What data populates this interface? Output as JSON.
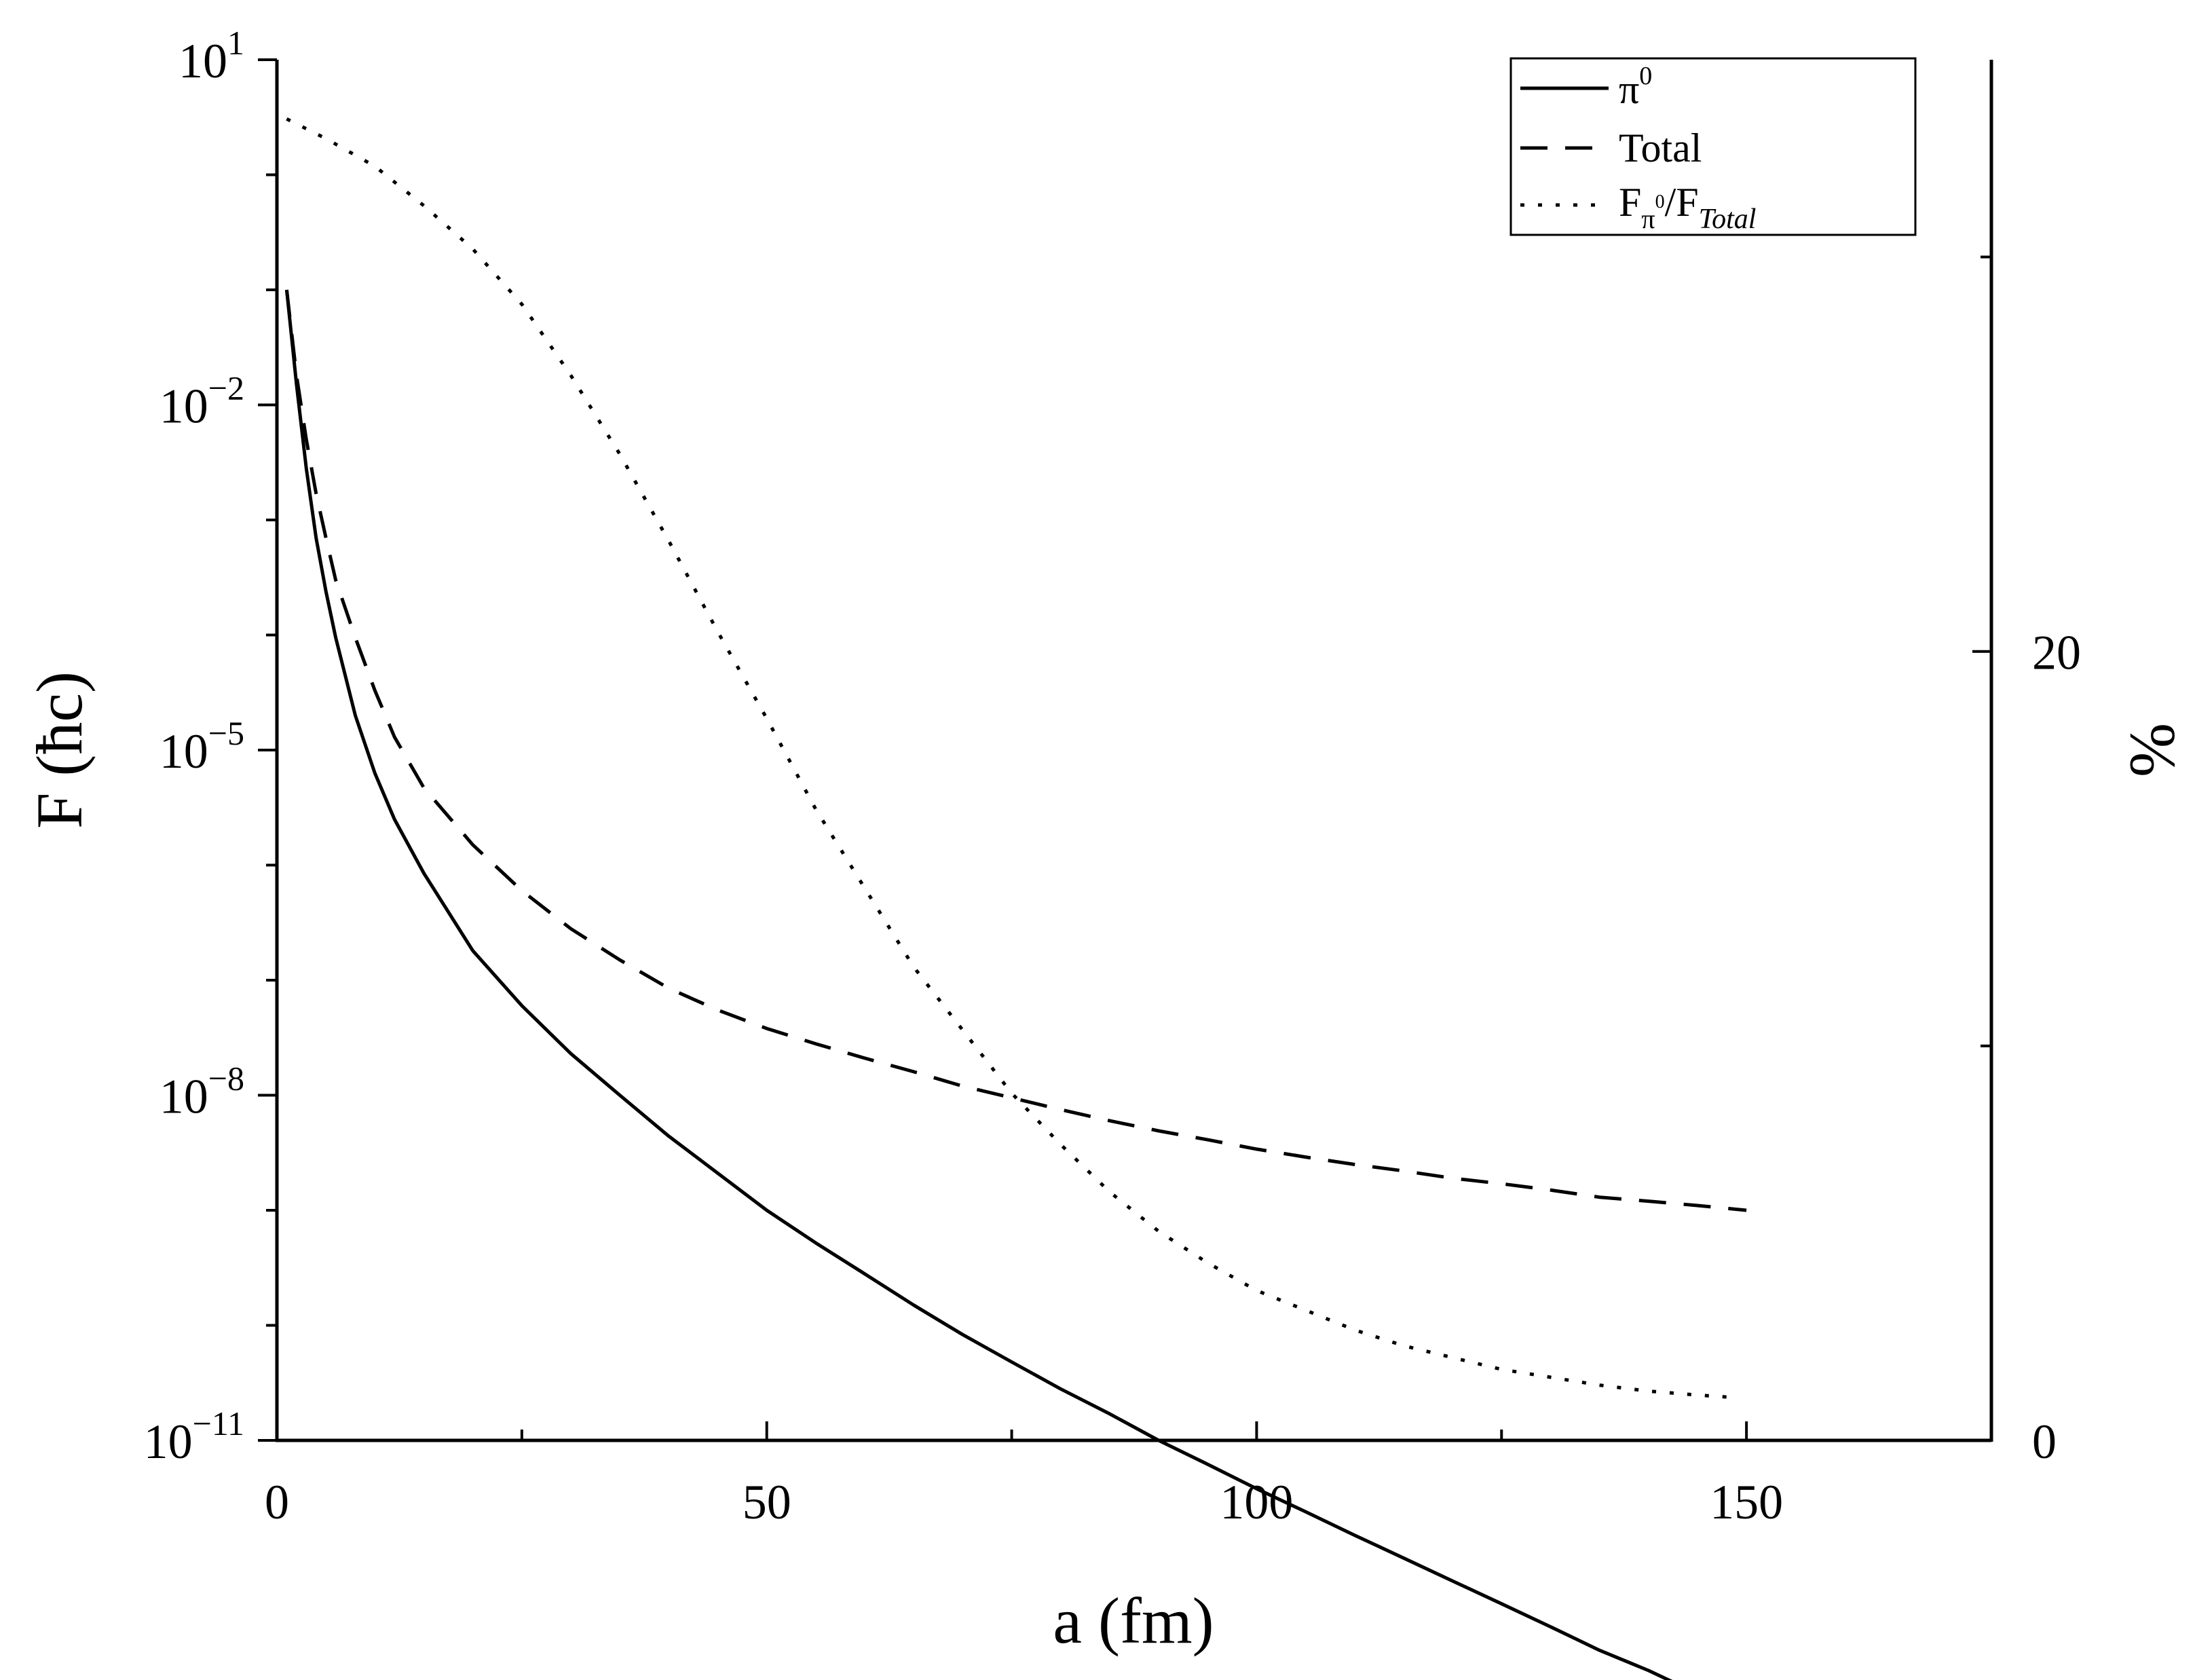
{
  "chart_data": {
    "type": "line",
    "xlabel": "a (fm)",
    "ylabel": "F (ħc)",
    "y2label": "%",
    "xlim": [
      0,
      175
    ],
    "ylim_log10": [
      -11,
      1
    ],
    "y2lim": [
      0,
      35
    ],
    "x_ticks": [
      0,
      50,
      100,
      150
    ],
    "x_tick_labels": [
      "0",
      "50",
      "100",
      "150"
    ],
    "y_tick_exponents": [
      -11,
      -8,
      -5,
      -2,
      1
    ],
    "y_tick_base": "10",
    "y_tick_labels": [
      "−11",
      "−8",
      "−5",
      "−2",
      "1"
    ],
    "y2_ticks": [
      0,
      20
    ],
    "y2_tick_labels": [
      "0",
      "20"
    ],
    "grid": false,
    "legend_position": "top-right",
    "legend": {
      "pi0_base": "π",
      "pi0_sup": "0",
      "total": "Total",
      "ratio_base": "F",
      "ratio_sub1": "π",
      "ratio_sup": "0",
      "ratio_slash": "/F",
      "ratio_sub2": "Total"
    },
    "series": [
      {
        "key": "pi0",
        "axis": "left",
        "style": "solid",
        "x": [
          1,
          2,
          3,
          4,
          5,
          6,
          8,
          10,
          12,
          15,
          20,
          25,
          30,
          35,
          40,
          45,
          50,
          55,
          60,
          65,
          70,
          75,
          80,
          85,
          90,
          95,
          100,
          105,
          110,
          115,
          120,
          125,
          130,
          135,
          140,
          145,
          150
        ],
        "y": [
          0.1,
          0.015,
          0.0028,
          0.0007,
          0.00024,
          9.5e-05,
          2e-05,
          6.3e-06,
          2.5e-06,
          8.5e-07,
          1.8e-07,
          6e-08,
          2.3e-08,
          1e-08,
          4.4e-09,
          2.1e-09,
          1e-09,
          5.2e-10,
          2.8e-10,
          1.5e-10,
          8.3e-11,
          4.8e-11,
          2.8e-11,
          1.7e-11,
          1e-11,
          6.2e-12,
          3.8e-12,
          2.4e-12,
          1.5e-12,
          9.5e-13,
          6e-13,
          3.8e-13,
          2.4e-13,
          1.5e-13,
          1e-13,
          6.3e-14,
          4e-14
        ]
      },
      {
        "key": "total",
        "axis": "left",
        "style": "dashed",
        "x": [
          1,
          2,
          3,
          4,
          5,
          6,
          8,
          10,
          12,
          15,
          20,
          25,
          30,
          35,
          40,
          45,
          50,
          55,
          60,
          65,
          70,
          75,
          80,
          85,
          90,
          95,
          100,
          105,
          110,
          115,
          120,
          125,
          130,
          135,
          140,
          145,
          150
        ],
        "y": [
          0.1,
          0.018,
          0.005,
          0.0017,
          0.0007,
          0.0003,
          9.5e-05,
          3.3e-05,
          1.3e-05,
          4.7e-06,
          1.5e-06,
          6e-07,
          2.8e-07,
          1.5e-07,
          8.5e-08,
          5.5e-08,
          3.8e-08,
          2.8e-08,
          2.1e-08,
          1.6e-08,
          1.2e-08,
          9.5e-09,
          7.5e-09,
          6e-09,
          4.9e-09,
          4.1e-09,
          3.4e-09,
          2.9e-09,
          2.5e-09,
          2.2e-09,
          1.9e-09,
          1.7e-09,
          1.5e-09,
          1.3e-09,
          1.2e-09,
          1.1e-09,
          1e-09
        ]
      },
      {
        "key": "ratio",
        "axis": "right",
        "style": "dotted",
        "x": [
          1,
          5,
          10,
          15,
          20,
          25,
          30,
          35,
          40,
          45,
          50,
          55,
          60,
          65,
          70,
          75,
          80,
          85,
          90,
          95,
          100,
          105,
          110,
          115,
          120,
          125,
          130,
          135,
          140,
          145,
          148
        ],
        "y": [
          33.5,
          33,
          32.3,
          31.3,
          30.2,
          28.8,
          27,
          25,
          22.8,
          20.5,
          18.3,
          16,
          14,
          12,
          10.4,
          8.8,
          7.5,
          6.3,
          5.3,
          4.5,
          3.8,
          3.3,
          2.8,
          2.4,
          2.1,
          1.8,
          1.6,
          1.4,
          1.25,
          1.15,
          1.1
        ]
      }
    ]
  }
}
